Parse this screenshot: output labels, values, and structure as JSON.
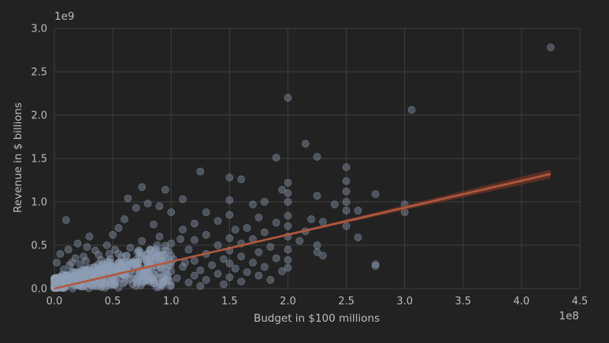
{
  "chart_data": {
    "type": "scatter",
    "title": "",
    "xlabel": "Budget in $100 millions",
    "ylabel": "Revenue in $ billions",
    "x_offset_label": "1e8",
    "y_offset_label": "1e9",
    "xlim": [
      0,
      4.5
    ],
    "ylim": [
      0,
      3.0
    ],
    "x_ticks": [
      "0.0",
      "0.5",
      "1.0",
      "1.5",
      "2.0",
      "2.5",
      "3.0",
      "3.5",
      "4.0",
      "4.5"
    ],
    "y_ticks": [
      "0.0",
      "0.5",
      "1.0",
      "1.5",
      "2.0",
      "2.5",
      "3.0"
    ],
    "grid": true,
    "colors": {
      "background": "#222222",
      "points": "#8a9bb3",
      "regression": "#b0583e",
      "grid": "#3d3d3d"
    },
    "regression": {
      "slope": 0.311,
      "intercept": 0.0,
      "x_range": [
        0,
        4.25
      ],
      "ci_band_half_width_at_max": 0.05
    },
    "series": [
      {
        "points": [
          [
            4.25,
            2.78
          ],
          [
            2.0,
            2.2
          ],
          [
            3.06,
            2.06
          ],
          [
            2.15,
            1.67
          ],
          [
            2.25,
            1.52
          ],
          [
            1.9,
            1.51
          ],
          [
            2.5,
            1.4
          ],
          [
            1.25,
            1.35
          ],
          [
            1.5,
            1.28
          ],
          [
            1.6,
            1.26
          ],
          [
            2.5,
            1.24
          ],
          [
            2.0,
            1.22
          ],
          [
            0.75,
            1.17
          ],
          [
            1.95,
            1.14
          ],
          [
            0.95,
            1.14
          ],
          [
            2.0,
            1.1
          ],
          [
            2.5,
            1.12
          ],
          [
            2.75,
            1.09
          ],
          [
            2.25,
            1.07
          ],
          [
            0.63,
            1.04
          ],
          [
            1.1,
            1.03
          ],
          [
            1.5,
            1.02
          ],
          [
            2.0,
            1.0
          ],
          [
            1.8,
            1.0
          ],
          [
            3.0,
            0.97
          ],
          [
            2.5,
            1.0
          ],
          [
            2.4,
            0.97
          ],
          [
            0.8,
            0.98
          ],
          [
            1.7,
            0.97
          ],
          [
            0.9,
            0.95
          ],
          [
            0.7,
            0.93
          ],
          [
            1.3,
            0.88
          ],
          [
            2.5,
            0.9
          ],
          [
            3.0,
            0.88
          ],
          [
            2.6,
            0.9
          ],
          [
            1.0,
            0.88
          ],
          [
            1.5,
            0.85
          ],
          [
            2.0,
            0.84
          ],
          [
            0.6,
            0.8
          ],
          [
            0.1,
            0.79
          ],
          [
            1.75,
            0.82
          ],
          [
            2.2,
            0.8
          ],
          [
            1.4,
            0.78
          ],
          [
            2.3,
            0.77
          ],
          [
            1.9,
            0.76
          ],
          [
            1.2,
            0.75
          ],
          [
            0.85,
            0.74
          ],
          [
            2.0,
            0.72
          ],
          [
            2.5,
            0.72
          ],
          [
            1.65,
            0.7
          ],
          [
            1.55,
            0.68
          ],
          [
            0.55,
            0.7
          ],
          [
            1.1,
            0.68
          ],
          [
            2.15,
            0.66
          ],
          [
            1.8,
            0.65
          ],
          [
            0.5,
            0.62
          ],
          [
            1.3,
            0.62
          ],
          [
            2.6,
            0.59
          ],
          [
            2.0,
            0.6
          ],
          [
            0.9,
            0.6
          ],
          [
            1.5,
            0.58
          ],
          [
            1.7,
            0.57
          ],
          [
            0.3,
            0.6
          ],
          [
            1.2,
            0.56
          ],
          [
            2.1,
            0.55
          ],
          [
            0.75,
            0.55
          ],
          [
            1.6,
            0.52
          ],
          [
            1.4,
            0.5
          ],
          [
            0.2,
            0.52
          ],
          [
            1.0,
            0.52
          ],
          [
            2.25,
            0.5
          ],
          [
            0.45,
            0.5
          ],
          [
            1.85,
            0.48
          ],
          [
            0.65,
            0.47
          ],
          [
            1.15,
            0.45
          ],
          [
            2.0,
            0.45
          ],
          [
            1.5,
            0.44
          ],
          [
            0.35,
            0.44
          ],
          [
            1.75,
            0.42
          ],
          [
            2.25,
            0.42
          ],
          [
            0.85,
            0.42
          ],
          [
            1.3,
            0.4
          ],
          [
            0.55,
            0.4
          ],
          [
            2.3,
            0.38
          ],
          [
            1.0,
            0.38
          ],
          [
            1.6,
            0.37
          ],
          [
            0.25,
            0.37
          ],
          [
            1.9,
            0.35
          ],
          [
            0.75,
            0.35
          ],
          [
            1.45,
            0.34
          ],
          [
            2.0,
            0.33
          ],
          [
            0.4,
            0.33
          ],
          [
            1.2,
            0.32
          ],
          [
            0.95,
            0.31
          ],
          [
            1.7,
            0.3
          ],
          [
            0.6,
            0.3
          ],
          [
            2.75,
            0.28
          ],
          [
            2.75,
            0.26
          ],
          [
            1.5,
            0.29
          ],
          [
            0.15,
            0.3
          ],
          [
            1.35,
            0.27
          ],
          [
            0.8,
            0.27
          ],
          [
            1.8,
            0.25
          ],
          [
            0.5,
            0.26
          ],
          [
            1.1,
            0.25
          ],
          [
            2.0,
            0.24
          ],
          [
            0.3,
            0.24
          ],
          [
            1.55,
            0.23
          ],
          [
            0.7,
            0.22
          ],
          [
            1.25,
            0.21
          ],
          [
            1.95,
            0.2
          ],
          [
            0.45,
            0.2
          ],
          [
            1.0,
            0.2
          ],
          [
            1.65,
            0.19
          ],
          [
            0.2,
            0.19
          ],
          [
            0.9,
            0.18
          ],
          [
            1.4,
            0.17
          ],
          [
            0.6,
            0.17
          ],
          [
            1.75,
            0.15
          ],
          [
            0.35,
            0.16
          ],
          [
            1.2,
            0.15
          ],
          [
            0.1,
            0.15
          ],
          [
            0.8,
            0.14
          ],
          [
            1.5,
            0.13
          ],
          [
            0.5,
            0.13
          ],
          [
            1.05,
            0.12
          ],
          [
            1.85,
            0.1
          ],
          [
            0.25,
            0.12
          ],
          [
            0.7,
            0.11
          ],
          [
            1.3,
            0.1
          ],
          [
            0.4,
            0.1
          ],
          [
            0.95,
            0.09
          ],
          [
            1.6,
            0.08
          ],
          [
            0.15,
            0.09
          ],
          [
            0.6,
            0.08
          ],
          [
            1.15,
            0.07
          ],
          [
            0.3,
            0.07
          ],
          [
            0.85,
            0.06
          ],
          [
            1.45,
            0.05
          ],
          [
            0.5,
            0.05
          ],
          [
            0.05,
            0.06
          ],
          [
            1.0,
            0.04
          ],
          [
            0.2,
            0.04
          ],
          [
            0.7,
            0.03
          ],
          [
            1.25,
            0.03
          ],
          [
            0.4,
            0.02
          ],
          [
            0.1,
            0.02
          ],
          [
            0.9,
            0.02
          ],
          [
            0.55,
            0.01
          ],
          [
            0.0,
            0.01
          ],
          [
            0.02,
            0.3
          ],
          [
            0.05,
            0.4
          ],
          [
            0.08,
            0.22
          ],
          [
            0.12,
            0.45
          ],
          [
            0.18,
            0.35
          ],
          [
            0.22,
            0.28
          ],
          [
            0.28,
            0.48
          ],
          [
            0.32,
            0.18
          ],
          [
            0.38,
            0.39
          ],
          [
            0.42,
            0.27
          ],
          [
            0.48,
            0.34
          ],
          [
            0.52,
            0.45
          ],
          [
            0.58,
            0.24
          ],
          [
            0.62,
            0.38
          ],
          [
            0.68,
            0.29
          ],
          [
            0.72,
            0.44
          ],
          [
            0.78,
            0.2
          ],
          [
            0.82,
            0.36
          ],
          [
            0.88,
            0.5
          ],
          [
            0.92,
            0.26
          ],
          [
            0.98,
            0.43
          ],
          [
            1.02,
            0.34
          ],
          [
            1.08,
            0.57
          ],
          [
            1.12,
            0.3
          ],
          [
            0.05,
            0.12
          ],
          [
            0.1,
            0.08
          ],
          [
            0.15,
            0.2
          ],
          [
            0.2,
            0.1
          ],
          [
            0.25,
            0.22
          ],
          [
            0.3,
            0.14
          ],
          [
            0.35,
            0.25
          ],
          [
            0.4,
            0.16
          ],
          [
            0.45,
            0.28
          ],
          [
            0.5,
            0.18
          ],
          [
            0.55,
            0.3
          ],
          [
            0.6,
            0.21
          ],
          [
            0.65,
            0.12
          ],
          [
            0.7,
            0.33
          ],
          [
            0.75,
            0.16
          ],
          [
            0.8,
            0.24
          ],
          [
            0.85,
            0.32
          ],
          [
            0.9,
            0.12
          ],
          [
            0.95,
            0.22
          ],
          [
            1.0,
            0.3
          ],
          [
            0.03,
            0.05
          ],
          [
            0.07,
            0.16
          ],
          [
            0.13,
            0.27
          ],
          [
            0.17,
            0.06
          ],
          [
            0.23,
            0.15
          ],
          [
            0.27,
            0.32
          ],
          [
            0.33,
            0.09
          ],
          [
            0.37,
            0.2
          ],
          [
            0.43,
            0.06
          ],
          [
            0.47,
            0.4
          ],
          [
            0.53,
            0.09
          ],
          [
            0.57,
            0.19
          ],
          [
            0.63,
            0.27
          ],
          [
            0.67,
            0.05
          ],
          [
            0.73,
            0.18
          ],
          [
            0.77,
            0.09
          ],
          [
            0.83,
            0.14
          ],
          [
            0.87,
            0.26
          ],
          [
            0.93,
            0.07
          ],
          [
            0.97,
            0.15
          ]
        ]
      }
    ]
  }
}
